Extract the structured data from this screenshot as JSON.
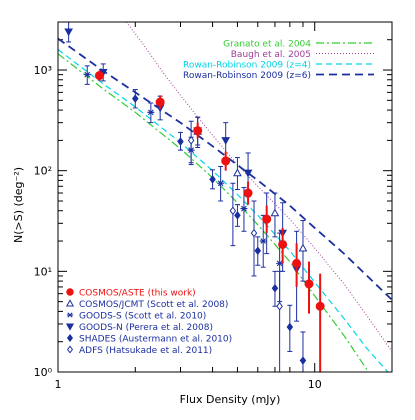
{
  "chart_data": {
    "type": "scatter",
    "xlabel": "Flux Density  (mJy)",
    "ylabel": "N(>S)  (deg⁻²)",
    "x_scale": "log",
    "y_scale": "log",
    "xlim": [
      1,
      20
    ],
    "ylim": [
      1,
      3000
    ],
    "x_tick_labels": [
      {
        "value": 1,
        "label": "1"
      },
      {
        "value": 10,
        "label": "10"
      }
    ],
    "y_tick_labels": [
      {
        "value": 1,
        "label": "10⁰"
      },
      {
        "value": 10,
        "label": "10¹"
      },
      {
        "value": 100,
        "label": "10²"
      },
      {
        "value": 1000,
        "label": "10³"
      }
    ],
    "grid": false,
    "model_legend_placement": "top-right",
    "data_legend_placement": "bottom-left",
    "models": [
      {
        "name": "Granato et al. 2004",
        "color": "#33cc33",
        "dash": "8,3,2,3",
        "width": 1.2,
        "x": [
          1,
          1.5,
          2,
          3,
          4,
          5,
          6,
          8,
          10,
          13,
          16,
          20
        ],
        "y": [
          1450,
          650,
          380,
          165,
          85,
          48,
          29,
          12.5,
          5.7,
          2.3,
          1.05,
          0.45
        ]
      },
      {
        "name": "Baugh et al. 2005",
        "color": "#a0409a",
        "dash": "1,2",
        "width": 1.0,
        "x": [
          1.85,
          2.2,
          2.6,
          3,
          3.5,
          4,
          5,
          6,
          8,
          10,
          13,
          16,
          20
        ],
        "y": [
          3000,
          1650,
          900,
          560,
          340,
          225,
          115,
          70,
          33,
          17,
          7.5,
          3.6,
          1.6
        ]
      },
      {
        "name": "Rowan-Robinson 2009 (z=4)",
        "color": "#00d5e8",
        "dash": "6,4",
        "width": 1.2,
        "x": [
          1,
          1.5,
          2,
          3,
          4,
          5,
          6,
          8,
          10,
          13,
          16,
          20
        ],
        "y": [
          1600,
          730,
          430,
          190,
          100,
          58,
          36,
          16,
          7.8,
          3.4,
          1.7,
          0.9
        ]
      },
      {
        "name": "Rowan-Robinson 2009 (z=6)",
        "color": "#1b2fa0",
        "dash": "8,5",
        "width": 1.8,
        "x": [
          1,
          1.5,
          2,
          3,
          4,
          6,
          8,
          10,
          13,
          16,
          20
        ],
        "y": [
          2050,
          980,
          600,
          300,
          175,
          80,
          45,
          27,
          15,
          9,
          5.2
        ]
      }
    ],
    "series": [
      {
        "name": "COSMOS/ASTE (this work)",
        "marker": "filled-circle",
        "color": "#ee1111",
        "points": [
          {
            "x": 1.45,
            "y": 880,
            "ylo": 780,
            "yhi": 990
          },
          {
            "x": 2.5,
            "y": 480,
            "ylo": 410,
            "yhi": 560
          },
          {
            "x": 3.5,
            "y": 250,
            "ylo": 210,
            "yhi": 300
          },
          {
            "x": 4.5,
            "y": 125,
            "ylo": 100,
            "yhi": 155
          },
          {
            "x": 5.5,
            "y": 60,
            "ylo": 46,
            "yhi": 78
          },
          {
            "x": 6.5,
            "y": 33,
            "ylo": 24,
            "yhi": 45
          },
          {
            "x": 7.5,
            "y": 18.5,
            "ylo": 12,
            "yhi": 27
          },
          {
            "x": 8.5,
            "y": 12,
            "ylo": 7,
            "yhi": 19
          },
          {
            "x": 9.5,
            "y": 7.5,
            "ylo": 3.8,
            "yhi": 12.5
          },
          {
            "x": 10.5,
            "y": 4.5,
            "ylo": 1,
            "yhi": 9.5
          }
        ]
      },
      {
        "name": "COSMOS/JCMT (Scott et al. 2008)",
        "marker": "open-triangle",
        "color": "#1b2fa0",
        "points": [
          {
            "x": 3.5,
            "y": 245,
            "ylo": 170,
            "yhi": 340
          },
          {
            "x": 5.0,
            "y": 95,
            "ylo": 65,
            "yhi": 135
          },
          {
            "x": 7.0,
            "y": 38,
            "ylo": 22,
            "yhi": 60
          },
          {
            "x": 9.0,
            "y": 17,
            "ylo": 8,
            "yhi": 32
          }
        ]
      },
      {
        "name": "GOODS-S (Scott et al. 2010)",
        "marker": "asterisk",
        "color": "#1b2fa0",
        "points": [
          {
            "x": 1.3,
            "y": 900,
            "ylo": 720,
            "yhi": 1100
          },
          {
            "x": 2.3,
            "y": 380,
            "ylo": 300,
            "yhi": 470
          },
          {
            "x": 3.3,
            "y": 160,
            "ylo": 115,
            "yhi": 215
          },
          {
            "x": 4.3,
            "y": 75,
            "ylo": 50,
            "yhi": 110
          },
          {
            "x": 5.3,
            "y": 42,
            "ylo": 25,
            "yhi": 68
          },
          {
            "x": 6.3,
            "y": 20,
            "ylo": 11,
            "yhi": 36
          },
          {
            "x": 7.3,
            "y": 12,
            "ylo": 5,
            "yhi": 24
          }
        ]
      },
      {
        "name": "GOODS-N (Perera et al. 2008)",
        "marker": "filled-triangle-down",
        "color": "#1b2fa0",
        "points": [
          {
            "x": 1.1,
            "y": 2400,
            "ylo": 1900,
            "yhi": 3000
          },
          {
            "x": 1.5,
            "y": 950,
            "ylo": 780,
            "yhi": 1150
          },
          {
            "x": 2.5,
            "y": 420,
            "ylo": 320,
            "yhi": 550
          },
          {
            "x": 3.5,
            "y": 250,
            "ylo": 180,
            "yhi": 340
          },
          {
            "x": 4.5,
            "y": 200,
            "ylo": 135,
            "yhi": 300
          },
          {
            "x": 5.5,
            "y": 95,
            "ylo": 55,
            "yhi": 150
          },
          {
            "x": 6.5,
            "y": 32,
            "ylo": 15,
            "yhi": 60
          },
          {
            "x": 7.5,
            "y": 24,
            "ylo": 10,
            "yhi": 48
          },
          {
            "x": 8.5,
            "y": 10.5,
            "ylo": 3.2,
            "yhi": 25
          }
        ]
      },
      {
        "name": "SHADES (Austermann et al. 2010)",
        "marker": "filled-diamond",
        "color": "#1b2fa0",
        "points": [
          {
            "x": 2.0,
            "y": 520,
            "ylo": 420,
            "yhi": 640
          },
          {
            "x": 3.0,
            "y": 195,
            "ylo": 160,
            "yhi": 240
          },
          {
            "x": 4.0,
            "y": 82,
            "ylo": 66,
            "yhi": 102
          },
          {
            "x": 5.0,
            "y": 36,
            "ylo": 28,
            "yhi": 46
          },
          {
            "x": 6.0,
            "y": 16,
            "ylo": 11.5,
            "yhi": 22
          },
          {
            "x": 7.0,
            "y": 6.8,
            "ylo": 4.5,
            "yhi": 10
          },
          {
            "x": 8.0,
            "y": 2.8,
            "ylo": 1.6,
            "yhi": 4.6
          },
          {
            "x": 9.0,
            "y": 1.3,
            "ylo": 0.6,
            "yhi": 2.5
          }
        ]
      },
      {
        "name": "ADFS (Hatsukade et al. 2011)",
        "marker": "open-diamond",
        "color": "#1b2fa0",
        "points": [
          {
            "x": 3.3,
            "y": 200,
            "ylo": 120,
            "yhi": 310
          },
          {
            "x": 4.8,
            "y": 40,
            "ylo": 18,
            "yhi": 75
          },
          {
            "x": 5.8,
            "y": 24,
            "ylo": 9,
            "yhi": 50
          },
          {
            "x": 7.3,
            "y": 4.5,
            "ylo": 1,
            "yhi": 10
          }
        ]
      }
    ]
  }
}
